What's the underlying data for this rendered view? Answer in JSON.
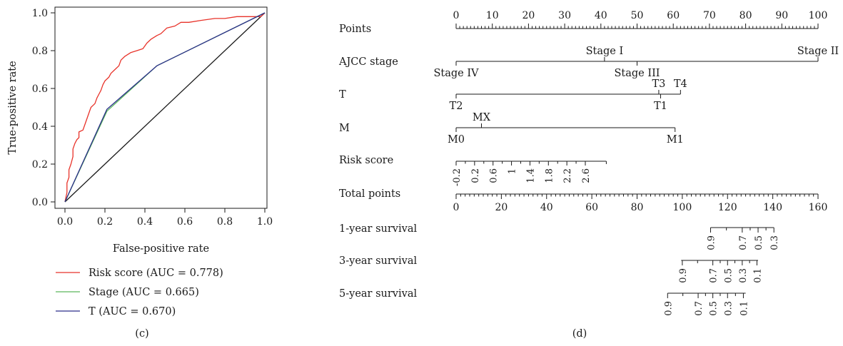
{
  "chart_data": [
    {
      "panel_label": "(c)",
      "type": "line",
      "xlabel": "False-positive rate",
      "ylabel": "True-positive rate",
      "xlim": [
        0,
        1
      ],
      "ylim": [
        0,
        1
      ],
      "x_ticks": [
        "0.0",
        "0.2",
        "0.4",
        "0.6",
        "0.8",
        "1.0"
      ],
      "y_ticks": [
        "0.0",
        "0.2",
        "0.4",
        "0.6",
        "0.8",
        "1.0"
      ],
      "legend_position": "below",
      "reference_line": [
        [
          0,
          0
        ],
        [
          1,
          1
        ]
      ],
      "series": [
        {
          "name": "Risk score (AUC = 0.778)",
          "color": "#e8332a",
          "points": [
            [
              0,
              0
            ],
            [
              0.01,
              0.05
            ],
            [
              0.01,
              0.1
            ],
            [
              0.02,
              0.13
            ],
            [
              0.02,
              0.17
            ],
            [
              0.03,
              0.2
            ],
            [
              0.04,
              0.24
            ],
            [
              0.04,
              0.28
            ],
            [
              0.05,
              0.31
            ],
            [
              0.06,
              0.33
            ],
            [
              0.07,
              0.34
            ],
            [
              0.07,
              0.37
            ],
            [
              0.09,
              0.38
            ],
            [
              0.1,
              0.41
            ],
            [
              0.11,
              0.44
            ],
            [
              0.12,
              0.47
            ],
            [
              0.13,
              0.5
            ],
            [
              0.15,
              0.52
            ],
            [
              0.16,
              0.55
            ],
            [
              0.17,
              0.57
            ],
            [
              0.18,
              0.59
            ],
            [
              0.19,
              0.62
            ],
            [
              0.2,
              0.64
            ],
            [
              0.22,
              0.66
            ],
            [
              0.23,
              0.68
            ],
            [
              0.25,
              0.7
            ],
            [
              0.27,
              0.72
            ],
            [
              0.28,
              0.75
            ],
            [
              0.3,
              0.77
            ],
            [
              0.33,
              0.79
            ],
            [
              0.36,
              0.8
            ],
            [
              0.39,
              0.81
            ],
            [
              0.41,
              0.84
            ],
            [
              0.43,
              0.86
            ],
            [
              0.46,
              0.88
            ],
            [
              0.48,
              0.89
            ],
            [
              0.51,
              0.92
            ],
            [
              0.55,
              0.93
            ],
            [
              0.58,
              0.95
            ],
            [
              0.62,
              0.95
            ],
            [
              0.68,
              0.96
            ],
            [
              0.75,
              0.97
            ],
            [
              0.8,
              0.97
            ],
            [
              0.86,
              0.98
            ],
            [
              0.9,
              0.98
            ],
            [
              0.95,
              0.98
            ],
            [
              0.98,
              0.98
            ],
            [
              1,
              1
            ]
          ]
        },
        {
          "name": "Stage (AUC = 0.665)",
          "color": "#5cb85c",
          "points": [
            [
              0,
              0
            ],
            [
              0.21,
              0.48
            ],
            [
              0.46,
              0.72
            ],
            [
              1,
              1
            ]
          ]
        },
        {
          "name": "T (AUC = 0.670)",
          "color": "#2b2f8a",
          "points": [
            [
              0,
              0
            ],
            [
              0.21,
              0.49
            ],
            [
              0.46,
              0.72
            ],
            [
              1,
              1
            ]
          ]
        }
      ]
    },
    {
      "panel_label": "(d)",
      "type": "nomogram",
      "points_axis": {
        "label": "Points",
        "range": [
          0,
          100
        ],
        "tick_labels": [
          "0",
          "10",
          "20",
          "30",
          "40",
          "50",
          "60",
          "70",
          "80",
          "90",
          "100"
        ]
      },
      "variables": [
        {
          "label": "AJCC stage",
          "levels": [
            {
              "name": "Stage IV",
              "points": 0,
              "side": "below"
            },
            {
              "name": "Stage I",
              "points": 41,
              "side": "above"
            },
            {
              "name": "Stage III",
              "points": 50,
              "side": "below"
            },
            {
              "name": "Stage II",
              "points": 100,
              "side": "above"
            }
          ]
        },
        {
          "label": "T",
          "levels": [
            {
              "name": "T2",
              "points": 0,
              "side": "below"
            },
            {
              "name": "T3",
              "points": 56,
              "side": "above"
            },
            {
              "name": "T1",
              "points": 56.5,
              "side": "below"
            },
            {
              "name": "T4",
              "points": 62,
              "side": "above"
            }
          ]
        },
        {
          "label": "M",
          "levels": [
            {
              "name": "M0",
              "points": 0,
              "side": "below"
            },
            {
              "name": "MX",
              "points": 7,
              "side": "above"
            },
            {
              "name": "M1",
              "points": 60.5,
              "side": "below"
            }
          ]
        },
        {
          "label": "Risk score",
          "tick_labels": [
            "-0.2",
            "0.2",
            "0.6",
            "1",
            "1.4",
            "1.8",
            "2.2",
            "2.6"
          ],
          "tick_points": [
            0,
            5.1,
            10.2,
            15.3,
            20.4,
            25.5,
            30.6,
            35.7
          ],
          "end_points": 41.5
        }
      ],
      "total_points_axis": {
        "label": "Total points",
        "range": [
          0,
          160
        ],
        "tick_labels": [
          "0",
          "20",
          "40",
          "60",
          "80",
          "100",
          "120",
          "140",
          "160"
        ]
      },
      "survival_axes": [
        {
          "label": "1-year survival",
          "range_total_points": [
            112.5,
            140.5
          ],
          "ticks": [
            {
              "label": "0.9",
              "total": 112.5
            },
            {
              "label": "0.7",
              "total": 126.5
            },
            {
              "label": "0.5",
              "total": 133.5
            },
            {
              "label": "0.3",
              "total": 140.5
            }
          ]
        },
        {
          "label": "3-year survival",
          "range_total_points": [
            99.5,
            133.5
          ],
          "ticks": [
            {
              "label": "0.9",
              "total": 100
            },
            {
              "label": "0.7",
              "total": 113.5
            },
            {
              "label": "0.5",
              "total": 120
            },
            {
              "label": "0.3",
              "total": 126.5
            },
            {
              "label": "0.1",
              "total": 133
            }
          ]
        },
        {
          "label": "5-year survival",
          "range_total_points": [
            93.5,
            128
          ],
          "ticks": [
            {
              "label": "0.9",
              "total": 93.5
            },
            {
              "label": "0.7",
              "total": 107
            },
            {
              "label": "0.5",
              "total": 113.5
            },
            {
              "label": "0.3",
              "total": 120
            },
            {
              "label": "0.1",
              "total": 127
            }
          ]
        }
      ]
    }
  ]
}
